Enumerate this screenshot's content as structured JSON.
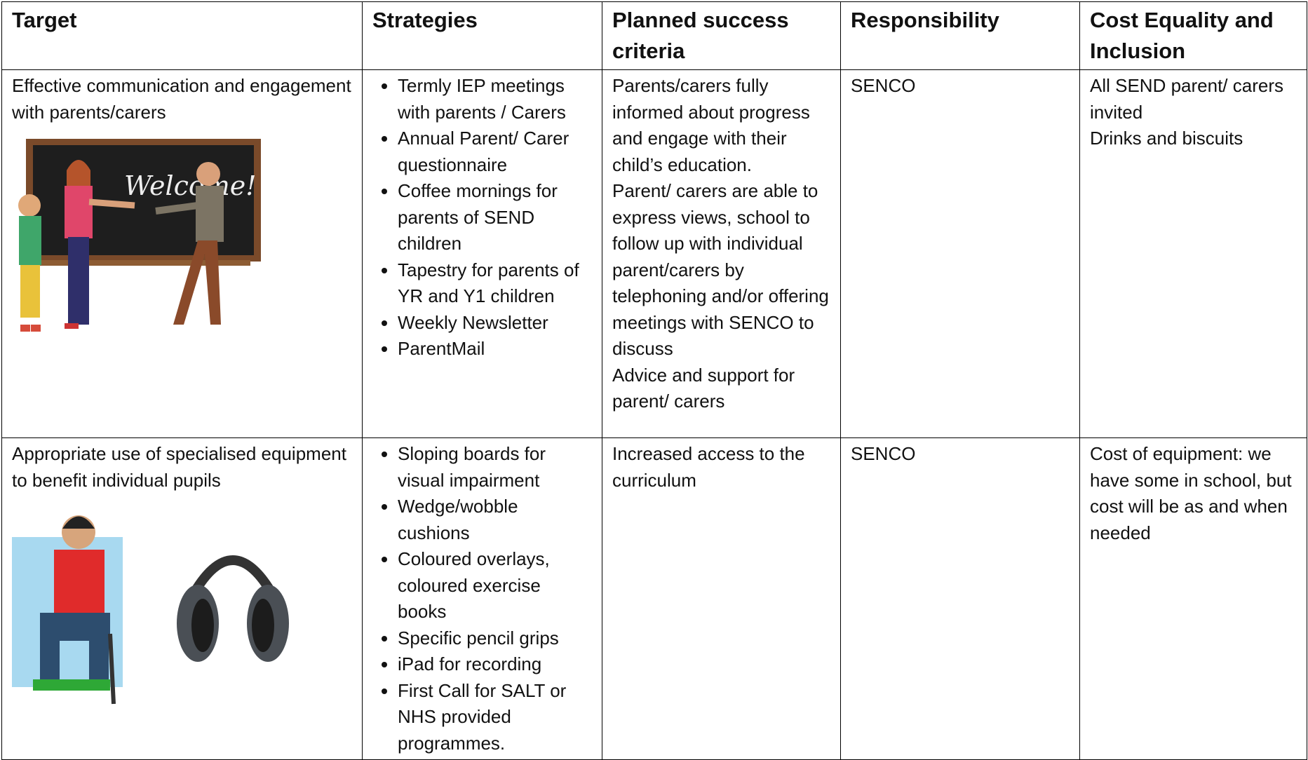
{
  "table": {
    "header": [
      "Target",
      "Strategies",
      "Planned success criteria",
      "Responsibility",
      "Cost Equality and Inclusion"
    ],
    "rows": [
      {
        "target": "Effective communication and engagement with parents/carers",
        "image_text": "Welcome!",
        "strategies": [
          "Termly IEP meetings with parents / Carers",
          "Annual Parent/ Carer questionnaire",
          "Coffee mornings for parents of SEND children",
          "Tapestry for parents of YR and Y1 children",
          "Weekly Newsletter",
          "ParentMail"
        ],
        "criteria": [
          "Parents/carers fully informed about progress and engage with their child’s education.",
          "Parent/ carers are able to express views, school to follow up with individual parent/carers by telephoning and/or offering meetings with SENCO to discuss",
          "Advice and support for parent/ carers"
        ],
        "responsibility": "SENCO",
        "cost": [
          "All SEND parent/ carers invited",
          "Drinks and biscuits"
        ]
      },
      {
        "target": "Appropriate use of specialised equipment to benefit individual pupils",
        "strategies": [
          "Sloping boards for visual impairment",
          "Wedge/wobble cushions",
          "Coloured overlays, coloured exercise books",
          "Specific pencil grips",
          "iPad for recording",
          "First Call for SALT or NHS provided programmes."
        ],
        "criteria": [
          "Increased access to the curriculum"
        ],
        "responsibility": "SENCO",
        "cost": [
          "Cost of equipment: we have some in school, but cost will be as and when needed"
        ]
      }
    ]
  }
}
